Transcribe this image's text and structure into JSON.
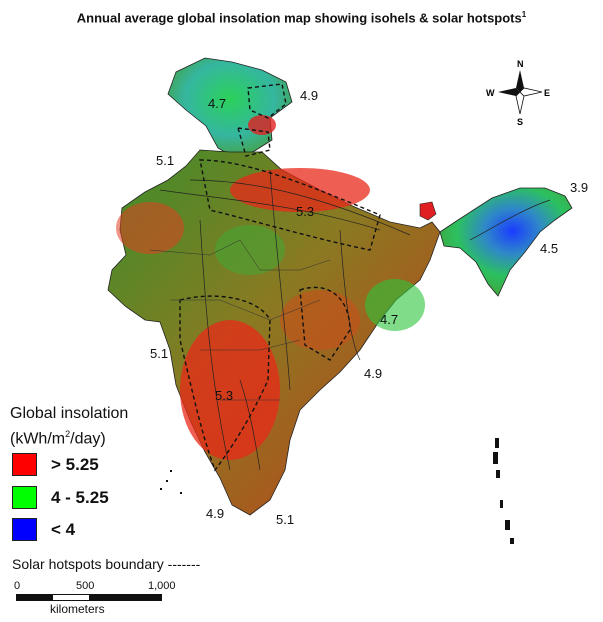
{
  "title": "Annual average global insolation map showing isohels & solar hotspots",
  "title_footnote": "1",
  "compass": {
    "north": "N",
    "south": "S",
    "east": "E",
    "west": "W"
  },
  "isohel_labels": [
    "4.7",
    "4.9",
    "5.1",
    "5.3",
    "3.9",
    "4.5",
    "4.7",
    "5.1",
    "4.9",
    "5.3",
    "4.9",
    "5.1"
  ],
  "legend": {
    "title_line1": "Global insolation",
    "title_line2_pre": "(kWh/m",
    "title_line2_sup": "2",
    "title_line2_post": "/day)",
    "items": [
      {
        "label": "> 5.25",
        "color": "#ff0000"
      },
      {
        "label": "4 - 5.25",
        "color": "#00ff00"
      },
      {
        "label": "< 4",
        "color": "#0000ff"
      }
    ]
  },
  "hotspots_label": "Solar hotspots boundary -------",
  "scale_bar": {
    "ticks": [
      "0",
      "500",
      "1,000"
    ],
    "unit": "kilometers"
  }
}
